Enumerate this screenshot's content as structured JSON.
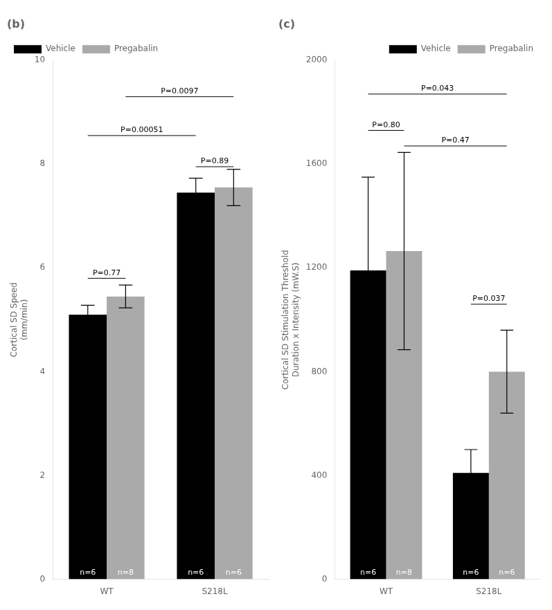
{
  "chart_data": [
    {
      "type": "bar",
      "title": "(b)",
      "categories": [
        "WT",
        "S218L"
      ],
      "series": [
        {
          "name": "Vehicle",
          "color": "#000000",
          "values": [
            5.1,
            7.45
          ],
          "errors": [
            0.18,
            0.28
          ]
        },
        {
          "name": "Pregabalin",
          "color": "#AAAAAA",
          "values": [
            5.45,
            7.55
          ],
          "errors": [
            0.22,
            0.35
          ]
        }
      ],
      "ylabel": "Cortical SD Speed\n(mm/min)",
      "ylim": [
        0,
        10
      ],
      "yticks": [
        0,
        2,
        4,
        6,
        8,
        10
      ],
      "grid": false,
      "legend": "upper left",
      "annotations": [
        {
          "text": "n=6",
          "category": "WT",
          "series": "Vehicle"
        },
        {
          "text": "n=8",
          "category": "WT",
          "series": "Pregabalin"
        },
        {
          "text": "n=6",
          "category": "S218L",
          "series": "Vehicle"
        },
        {
          "text": "n=6",
          "category": "S218L",
          "series": "Pregabalin"
        },
        {
          "text": "P=0.77",
          "y": 5.8,
          "from": {
            "category": "WT",
            "series": "Vehicle"
          },
          "to": {
            "category": "WT",
            "series": "Pregabalin"
          }
        },
        {
          "text": "P=0.89",
          "y": 7.95,
          "from": {
            "category": "S218L",
            "series": "Vehicle"
          },
          "to": {
            "category": "S218L",
            "series": "Pregabalin"
          }
        },
        {
          "text": "P=0.00051",
          "y": 8.55,
          "from": {
            "category": "WT",
            "series": "Vehicle"
          },
          "to": {
            "category": "S218L",
            "series": "Vehicle"
          }
        },
        {
          "text": "P=0.0097",
          "y": 9.3,
          "from": {
            "category": "WT",
            "series": "Pregabalin"
          },
          "to": {
            "category": "S218L",
            "series": "Pregabalin"
          }
        }
      ]
    },
    {
      "type": "bar",
      "title": "(c)",
      "categories": [
        "WT",
        "S218L"
      ],
      "series": [
        {
          "name": "Vehicle",
          "color": "#000000",
          "values": [
            1190,
            410
          ],
          "errors": [
            360,
            90
          ]
        },
        {
          "name": "Pregabalin",
          "color": "#AAAAAA",
          "values": [
            1265,
            800
          ],
          "errors": [
            380,
            160
          ]
        }
      ],
      "ylabel": "Cortical SD Stimulation Threshold\nDuration x Intensity (mW.S)",
      "ylim": [
        0,
        2000
      ],
      "yticks": [
        0,
        400,
        800,
        1200,
        1600,
        2000
      ],
      "grid": false,
      "legend": "upper right",
      "annotations": [
        {
          "text": "n=6",
          "category": "WT",
          "series": "Vehicle"
        },
        {
          "text": "n=8",
          "category": "WT",
          "series": "Pregabalin"
        },
        {
          "text": "n=6",
          "category": "S218L",
          "series": "Vehicle"
        },
        {
          "text": "n=6",
          "category": "S218L",
          "series": "Pregabalin"
        },
        {
          "text": "P=0.80",
          "y": 1730,
          "from": {
            "category": "WT",
            "series": "Vehicle"
          },
          "to": {
            "category": "WT",
            "series": "Pregabalin"
          }
        },
        {
          "text": "P=0.043",
          "y": 1870,
          "from": {
            "category": "WT",
            "series": "Vehicle"
          },
          "to": {
            "category": "S218L",
            "series": "Pregabalin"
          }
        },
        {
          "text": "P=0.47",
          "y": 1670,
          "from": {
            "category": "WT",
            "series": "Pregabalin"
          },
          "to": {
            "category": "S218L",
            "series": "Pregabalin"
          }
        },
        {
          "text": "P=0.037",
          "y": 1060,
          "from": {
            "category": "S218L",
            "series": "Vehicle"
          },
          "to": {
            "category": "S218L",
            "series": "Pregabalin"
          }
        }
      ]
    }
  ]
}
